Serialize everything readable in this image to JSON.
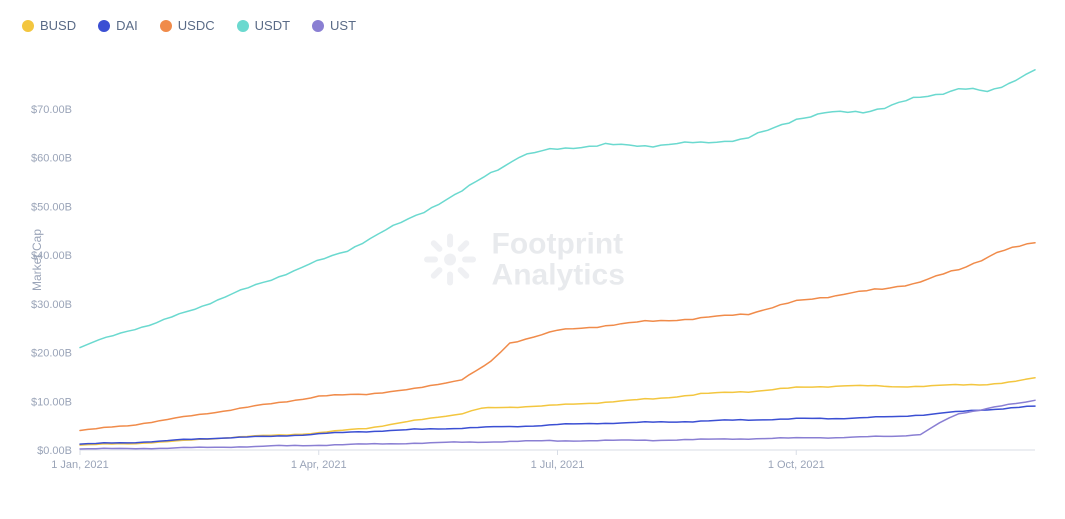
{
  "chart": {
    "type": "line",
    "background_color": "#ffffff",
    "grid_color": "#f0f2f6",
    "axis_text_color": "#9aa4b8",
    "legend_text_color": "#5a6b87",
    "ylabel": "Market Cap",
    "ylabel_fontsize": 12,
    "legend_fontsize": 13,
    "tick_fontsize": 11,
    "line_width": 1.5,
    "ylim": [
      0,
      80
    ],
    "yticks": [
      0,
      10,
      20,
      30,
      40,
      50,
      60,
      70
    ],
    "ytick_labels": [
      "$0.00B",
      "$10.00B",
      "$20.00B",
      "$30.00B",
      "$40.00B",
      "$50.00B",
      "$60.00B",
      "$70.00B"
    ],
    "xticks": [
      0,
      0.25,
      0.5,
      0.75
    ],
    "xtick_labels": [
      "1 Jan, 2021",
      "1 Apr, 2021",
      "1 Jul, 2021",
      "1 Oct, 2021"
    ],
    "watermark": {
      "line1": "Footprint",
      "line2": "Analytics",
      "icon_color": "#6a7a95"
    },
    "series": [
      {
        "name": "BUSD",
        "color": "#f3c63f",
        "x": [
          0,
          0.05,
          0.1,
          0.15,
          0.2,
          0.25,
          0.3,
          0.35,
          0.4,
          0.42,
          0.45,
          0.5,
          0.55,
          0.6,
          0.65,
          0.7,
          0.75,
          0.8,
          0.85,
          0.9,
          0.95,
          0.98,
          1.0
        ],
        "y": [
          1.0,
          1.3,
          1.8,
          2.5,
          3.0,
          3.5,
          4.5,
          6.0,
          7.5,
          8.5,
          8.8,
          9.2,
          9.8,
          10.5,
          11.5,
          12.0,
          12.8,
          13.2,
          13.0,
          13.2,
          13.5,
          14.0,
          14.8
        ]
      },
      {
        "name": "DAI",
        "color": "#3b4fd3",
        "x": [
          0,
          0.05,
          0.1,
          0.15,
          0.2,
          0.25,
          0.3,
          0.35,
          0.4,
          0.45,
          0.5,
          0.55,
          0.6,
          0.65,
          0.7,
          0.75,
          0.8,
          0.85,
          0.9,
          0.95,
          1.0
        ],
        "y": [
          1.2,
          1.5,
          2.0,
          2.5,
          2.8,
          3.3,
          3.8,
          4.2,
          4.5,
          4.8,
          5.2,
          5.5,
          5.7,
          5.9,
          6.2,
          6.4,
          6.5,
          6.8,
          7.5,
          8.3,
          9.0
        ]
      },
      {
        "name": "USDC",
        "color": "#f08b4a",
        "x": [
          0,
          0.05,
          0.1,
          0.15,
          0.2,
          0.25,
          0.3,
          0.35,
          0.4,
          0.43,
          0.45,
          0.5,
          0.55,
          0.6,
          0.65,
          0.7,
          0.75,
          0.8,
          0.84,
          0.88,
          0.92,
          0.96,
          1.0
        ],
        "y": [
          4.0,
          5.0,
          6.5,
          8.0,
          9.5,
          11.0,
          11.5,
          12.5,
          14.5,
          18.0,
          22.0,
          24.5,
          25.5,
          26.5,
          27.0,
          28.0,
          30.5,
          32.0,
          33.0,
          34.5,
          37.0,
          40.5,
          42.5
        ]
      },
      {
        "name": "USDT",
        "color": "#6bd9cf",
        "x": [
          0,
          0.02,
          0.05,
          0.08,
          0.12,
          0.16,
          0.2,
          0.24,
          0.28,
          0.32,
          0.36,
          0.4,
          0.43,
          0.46,
          0.5,
          0.55,
          0.6,
          0.65,
          0.7,
          0.72,
          0.75,
          0.78,
          0.82,
          0.85,
          0.88,
          0.92,
          0.95,
          0.98,
          1.0
        ],
        "y": [
          21.0,
          22.5,
          24.5,
          26.0,
          29.0,
          32.0,
          35.0,
          38.0,
          41.0,
          45.0,
          49.0,
          53.0,
          57.0,
          60.0,
          62.0,
          62.5,
          62.5,
          63.0,
          64.0,
          65.5,
          68.0,
          69.0,
          69.5,
          70.5,
          72.5,
          74.0,
          73.5,
          76.0,
          78.0
        ]
      },
      {
        "name": "UST",
        "color": "#8a7fd3",
        "x": [
          0,
          0.1,
          0.2,
          0.3,
          0.4,
          0.5,
          0.6,
          0.7,
          0.8,
          0.85,
          0.88,
          0.9,
          0.92,
          0.95,
          0.98,
          1.0
        ],
        "y": [
          0.2,
          0.4,
          0.8,
          1.2,
          1.6,
          1.9,
          2.0,
          2.3,
          2.6,
          2.8,
          3.2,
          5.5,
          7.5,
          8.5,
          9.5,
          10.2
        ]
      }
    ]
  }
}
